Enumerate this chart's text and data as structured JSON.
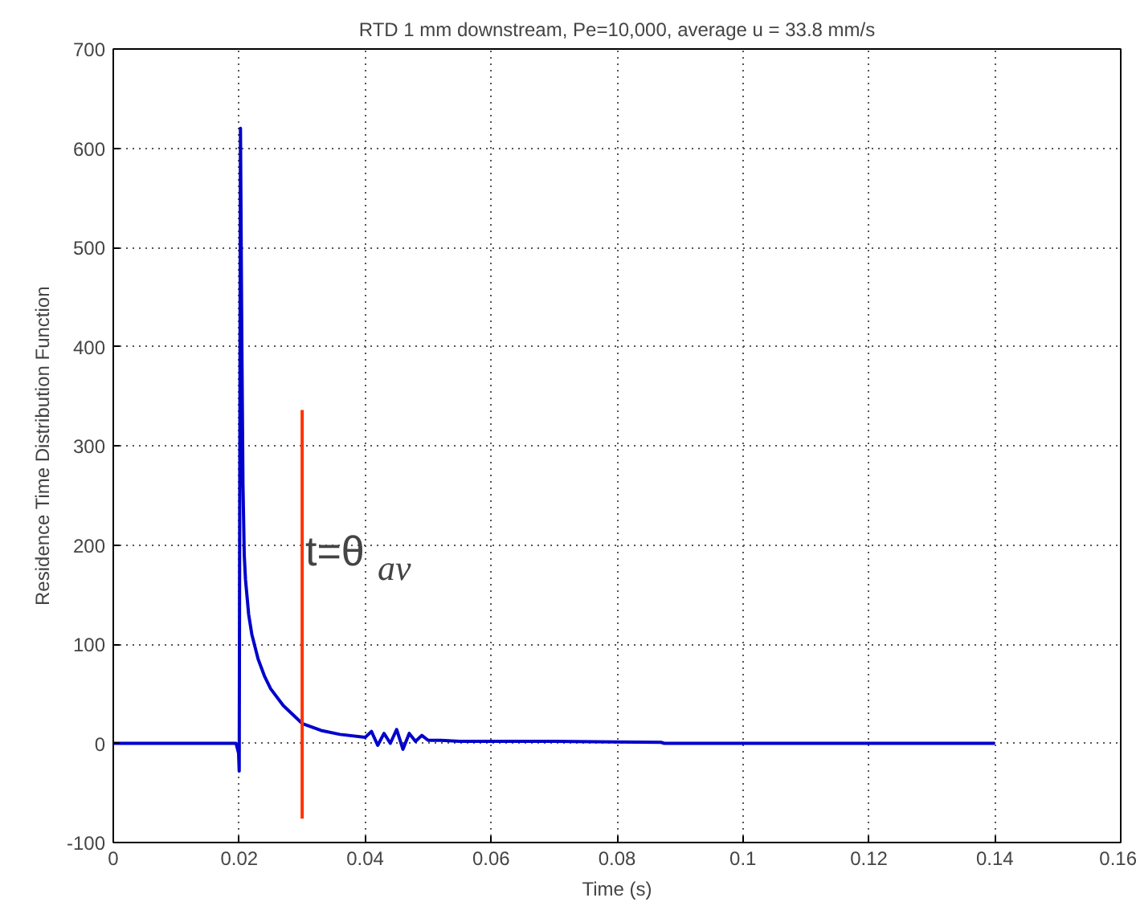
{
  "chart_data": {
    "type": "line",
    "title": "RTD 1 mm downstream, Pe=10,000, average u = 33.8 mm/s",
    "xlabel": "Time (s)",
    "ylabel": "Residence Time Distribution Function",
    "series": [
      {
        "color": "#0000cc",
        "x": [
          0,
          0.0195,
          0.0199,
          0.02,
          0.0201,
          0.0202,
          0.0204,
          0.0206,
          0.0208,
          0.021,
          0.0215,
          0.022,
          0.023,
          0.024,
          0.025,
          0.027,
          0.03,
          0.033,
          0.036,
          0.04,
          0.041,
          0.042,
          0.043,
          0.044,
          0.045,
          0.046,
          0.047,
          0.048,
          0.049,
          0.05,
          0.052,
          0.055,
          0.06,
          0.07,
          0.087,
          0.0875,
          0.1,
          0.14
        ],
        "values": [
          0,
          0,
          -10,
          -28,
          300,
          620,
          420,
          260,
          190,
          165,
          130,
          110,
          85,
          68,
          55,
          38,
          20,
          13,
          9,
          6,
          12,
          -2,
          10,
          0,
          14,
          -6,
          10,
          2,
          8,
          3,
          3,
          2,
          2,
          2,
          1,
          0,
          0,
          0
        ]
      },
      {
        "color": "#ff3300",
        "x": [
          0.03,
          0.03
        ],
        "values": [
          336,
          -76
        ]
      }
    ],
    "annotations": [
      {
        "text": "t=θ$_{av}$",
        "x": 0.0305,
        "y": 170
      }
    ],
    "xlim": [
      0,
      0.16
    ],
    "ylim": [
      -100,
      700
    ],
    "xticks": [
      0,
      0.02,
      0.04,
      0.06,
      0.08,
      0.1,
      0.12,
      0.14,
      0.16
    ],
    "yticks": [
      -100,
      0,
      100,
      200,
      300,
      400,
      500,
      600,
      700
    ],
    "grid": true,
    "line_style": "solid",
    "marker": "none"
  }
}
